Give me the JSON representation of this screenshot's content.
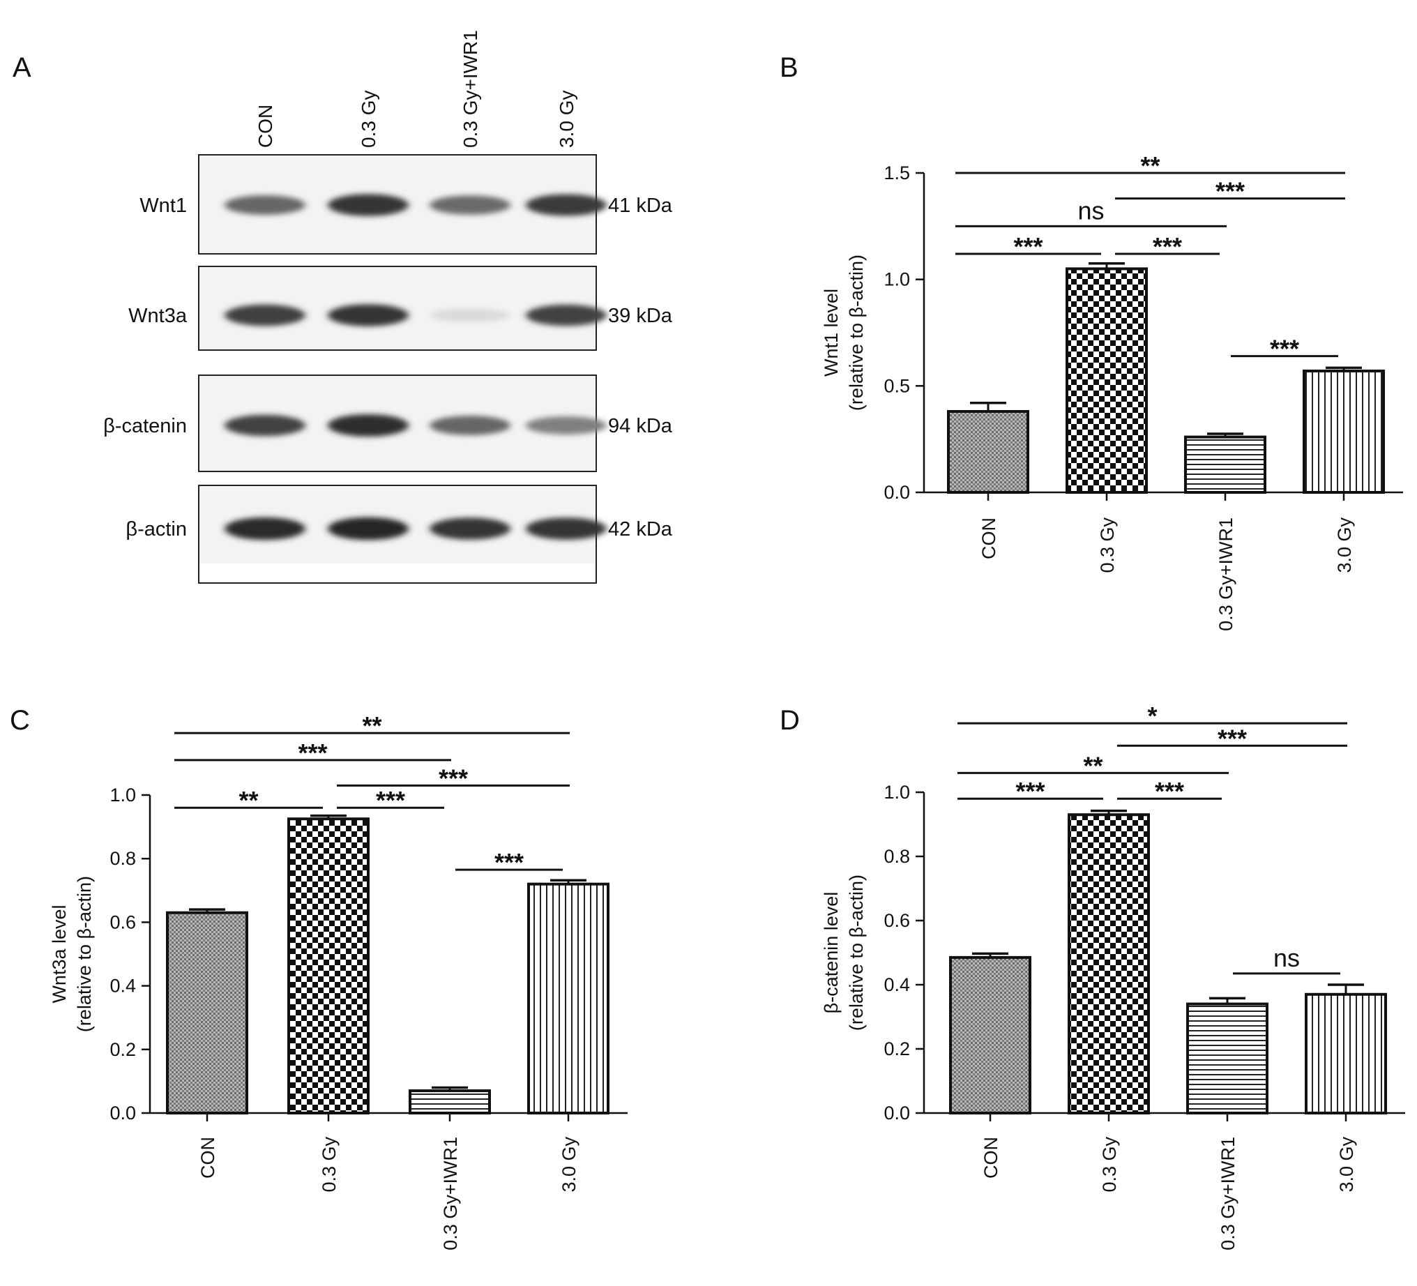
{
  "figure": {
    "panel_letters": [
      "A",
      "B",
      "C",
      "D"
    ]
  },
  "western_blot": {
    "panel": "A",
    "lanes": [
      "CON",
      "0.3 Gy",
      "0.3 Gy+IWR1",
      "3.0 Gy"
    ],
    "proteins": [
      {
        "name": "Wnt1",
        "size": "41 kDa",
        "intensity": [
          0.62,
          0.85,
          0.6,
          0.82
        ]
      },
      {
        "name": "Wnt3a",
        "size": "39 kDa",
        "intensity": [
          0.8,
          0.85,
          0.08,
          0.78
        ]
      },
      {
        "name": "β-catenin",
        "size": "94 kDa",
        "intensity": [
          0.78,
          0.88,
          0.62,
          0.5
        ]
      },
      {
        "name": "β-actin",
        "size": "42 kDa",
        "intensity": [
          0.9,
          0.92,
          0.85,
          0.85
        ]
      }
    ]
  },
  "chart_data": [
    {
      "panel": "B",
      "type": "bar",
      "categories": [
        "CON",
        "0.3 Gy",
        "0.3 Gy+IWR1",
        "3.0 Gy"
      ],
      "values": [
        0.38,
        1.05,
        0.26,
        0.57
      ],
      "errors": [
        0.04,
        0.025,
        0.015,
        0.015
      ],
      "patterns": [
        "dots",
        "checker",
        "hlines",
        "vlines"
      ],
      "ylabel_line1": "Wnt1 level",
      "ylabel_line2": "(relative to β-actin)",
      "ylim": [
        0,
        1.5
      ],
      "yticks": [
        "0.0",
        "0.5",
        "1.0",
        "1.5"
      ],
      "ytick_values": [
        0,
        0.5,
        1.0,
        1.5
      ],
      "comparisons": [
        {
          "from": 0,
          "to": 3,
          "label": "**",
          "level": 1.5
        },
        {
          "from": 1,
          "to": 3,
          "label": "***",
          "level": 1.38
        },
        {
          "from": 0,
          "to": 2,
          "label": "ns",
          "level": 1.25
        },
        {
          "from": 0,
          "to": 1,
          "label": "***",
          "level": 1.12
        },
        {
          "from": 1,
          "to": 2,
          "label": "***",
          "level": 1.12
        },
        {
          "from": 2,
          "to": 3,
          "label": "***",
          "level": 0.64
        }
      ]
    },
    {
      "panel": "C",
      "type": "bar",
      "categories": [
        "CON",
        "0.3 Gy",
        "0.3 Gy+IWR1",
        "3.0 Gy"
      ],
      "values": [
        0.63,
        0.925,
        0.07,
        0.72
      ],
      "errors": [
        0.01,
        0.01,
        0.01,
        0.012
      ],
      "patterns": [
        "dots",
        "checker",
        "hlines",
        "vlines"
      ],
      "ylabel_line1": "Wnt3a level",
      "ylabel_line2": "(relative to β-actin)",
      "ylim": [
        0,
        1.0
      ],
      "yticks": [
        "0.0",
        "0.2",
        "0.4",
        "0.6",
        "0.8",
        "1.0"
      ],
      "ytick_values": [
        0,
        0.2,
        0.4,
        0.6,
        0.8,
        1.0
      ],
      "comparisons": [
        {
          "from": 0,
          "to": 3,
          "label": "**",
          "level": 1.195
        },
        {
          "from": 0,
          "to": 2,
          "label": "***",
          "level": 1.11
        },
        {
          "from": 1,
          "to": 3,
          "label": "***",
          "level": 1.03
        },
        {
          "from": 0,
          "to": 1,
          "label": "**",
          "level": 0.96
        },
        {
          "from": 1,
          "to": 2,
          "label": "***",
          "level": 0.96
        },
        {
          "from": 2,
          "to": 3,
          "label": "***",
          "level": 0.765
        }
      ]
    },
    {
      "panel": "D",
      "type": "bar",
      "categories": [
        "CON",
        "0.3 Gy",
        "0.3 Gy+IWR1",
        "3.0 Gy"
      ],
      "values": [
        0.485,
        0.93,
        0.34,
        0.37
      ],
      "errors": [
        0.012,
        0.012,
        0.018,
        0.03
      ],
      "patterns": [
        "dots",
        "checker",
        "hlines",
        "vlines"
      ],
      "ylabel_line1": "β-catenin level",
      "ylabel_line2": "(relative to β-actin)",
      "ylim": [
        0,
        1.0
      ],
      "yticks": [
        "0.0",
        "0.2",
        "0.4",
        "0.6",
        "0.8",
        "1.0"
      ],
      "ytick_values": [
        0,
        0.2,
        0.4,
        0.6,
        0.8,
        1.0
      ],
      "comparisons": [
        {
          "from": 0,
          "to": 3,
          "label": "*",
          "level": 1.215
        },
        {
          "from": 1,
          "to": 3,
          "label": "***",
          "level": 1.145
        },
        {
          "from": 0,
          "to": 2,
          "label": "**",
          "level": 1.06
        },
        {
          "from": 0,
          "to": 1,
          "label": "***",
          "level": 0.98
        },
        {
          "from": 1,
          "to": 2,
          "label": "***",
          "level": 0.98
        },
        {
          "from": 2,
          "to": 3,
          "label": "ns",
          "level": 0.435
        }
      ]
    }
  ]
}
